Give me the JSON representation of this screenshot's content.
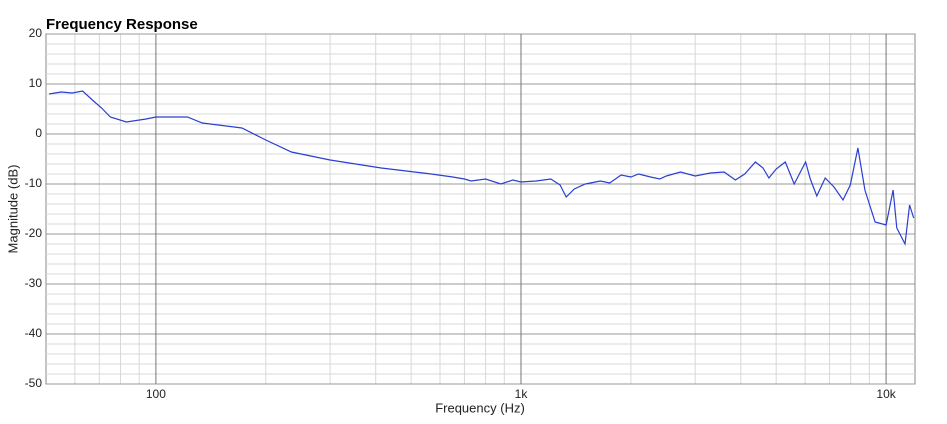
{
  "chart_data": {
    "type": "line",
    "title": "Frequency Response",
    "x_label": "Frequency (Hz)",
    "y_label": "Magnitude (dB)",
    "x_scale": "log",
    "grid": true,
    "minor_grid": true,
    "xlim": [
      50,
      12000
    ],
    "ylim": [
      -50,
      20
    ],
    "xticks": [
      100,
      {
        "value": 1000,
        "label": "1k"
      },
      {
        "value": 10000,
        "label": "10k"
      }
    ],
    "yticks": [
      -50,
      -40,
      -30,
      -20,
      -10,
      0,
      10,
      20
    ],
    "series": [
      {
        "name": "Magnitude",
        "color": "#2a3fd0",
        "x": [
          51,
          55,
          59,
          63,
          67,
          71,
          75,
          83,
          94,
          100,
          122,
          134,
          172,
          200,
          235,
          300,
          414,
          568,
          650,
          700,
          730,
          800,
          881,
          950,
          1000,
          1100,
          1207,
          1280,
          1330,
          1400,
          1500,
          1650,
          1750,
          1880,
          2000,
          2100,
          2264,
          2400,
          2500,
          2735,
          3000,
          3303,
          3600,
          3866,
          4100,
          4385,
          4600,
          4775,
          5000,
          5297,
          5600,
          6018,
          6200,
          6460,
          6810,
          7200,
          7620,
          7980,
          8370,
          8750,
          9333,
          10000,
          10450,
          10700,
          11270,
          11600,
          11900
        ],
        "values": [
          8,
          8.4,
          8.2,
          8.6,
          6.8,
          5.2,
          3.4,
          2.4,
          3.0,
          3.4,
          3.4,
          2.2,
          1.2,
          -1.2,
          -3.6,
          -5.2,
          -6.8,
          -8.0,
          -8.6,
          -9.0,
          -9.4,
          -9.0,
          -10.0,
          -9.2,
          -9.6,
          -9.4,
          -9.0,
          -10.2,
          -12.6,
          -11.0,
          -10.0,
          -9.4,
          -9.8,
          -8.2,
          -8.6,
          -8.0,
          -8.6,
          -9.0,
          -8.4,
          -7.6,
          -8.4,
          -7.8,
          -7.6,
          -9.2,
          -8.0,
          -5.6,
          -6.8,
          -8.8,
          -7.0,
          -5.6,
          -10.0,
          -5.6,
          -9.0,
          -12.4,
          -8.8,
          -10.6,
          -13.2,
          -10.2,
          -2.8,
          -11.2,
          -17.6,
          -18.2,
          -11.2,
          -18.8,
          -22.0,
          -14.2,
          -16.8
        ]
      }
    ]
  }
}
